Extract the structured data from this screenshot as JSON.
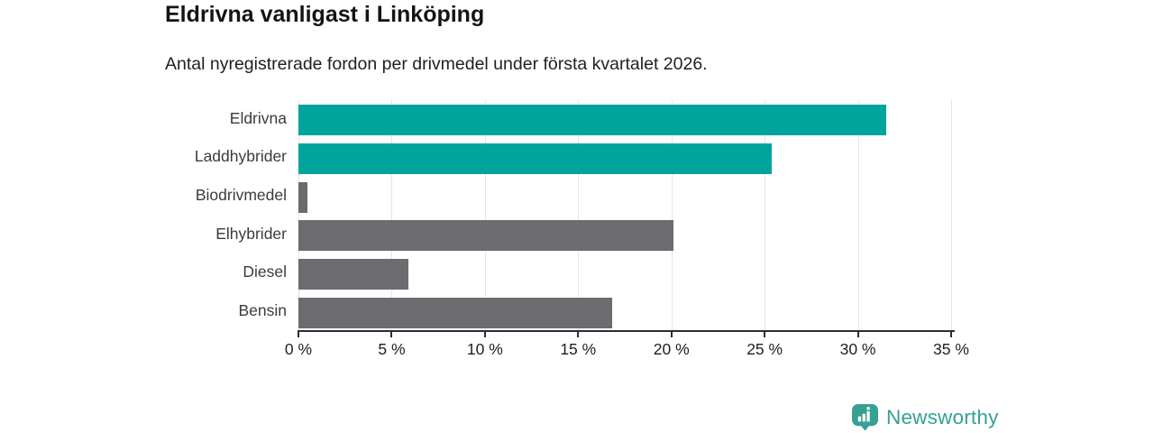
{
  "header": {
    "title": "Eldrivna vanligast i Linköping",
    "subtitle": "Antal nyregistrerade fordon per drivmedel under första kvartalet 2026."
  },
  "chart_data": {
    "type": "bar",
    "orientation": "horizontal",
    "title": "Eldrivna vanligast i Linköping",
    "subtitle": "Antal nyregistrerade fordon per drivmedel under första kvartalet 2026.",
    "categories": [
      "Eldrivna",
      "Laddhybrider",
      "Biodrivmedel",
      "Elhybrider",
      "Diesel",
      "Bensin"
    ],
    "values": [
      31.5,
      25.4,
      0.5,
      20.1,
      5.9,
      16.8
    ],
    "unit": "%",
    "bar_colors": [
      "#00a49b",
      "#00a49b",
      "#6b6b70",
      "#6b6b70",
      "#6b6b70",
      "#6b6b70"
    ],
    "highlight_color": "#00a49b",
    "default_color": "#6b6b70",
    "xlim": [
      0,
      35
    ],
    "x_ticks": [
      0,
      5,
      10,
      15,
      20,
      25,
      30,
      35
    ],
    "x_tick_labels": [
      "0 %",
      "5 %",
      "10 %",
      "15 %",
      "20 %",
      "25 %",
      "30 %",
      "35 %"
    ],
    "xlabel": "",
    "ylabel": "",
    "grid": true,
    "legend": false
  },
  "footer": {
    "brand": "Newsworthy",
    "brand_color": "#35a093"
  }
}
